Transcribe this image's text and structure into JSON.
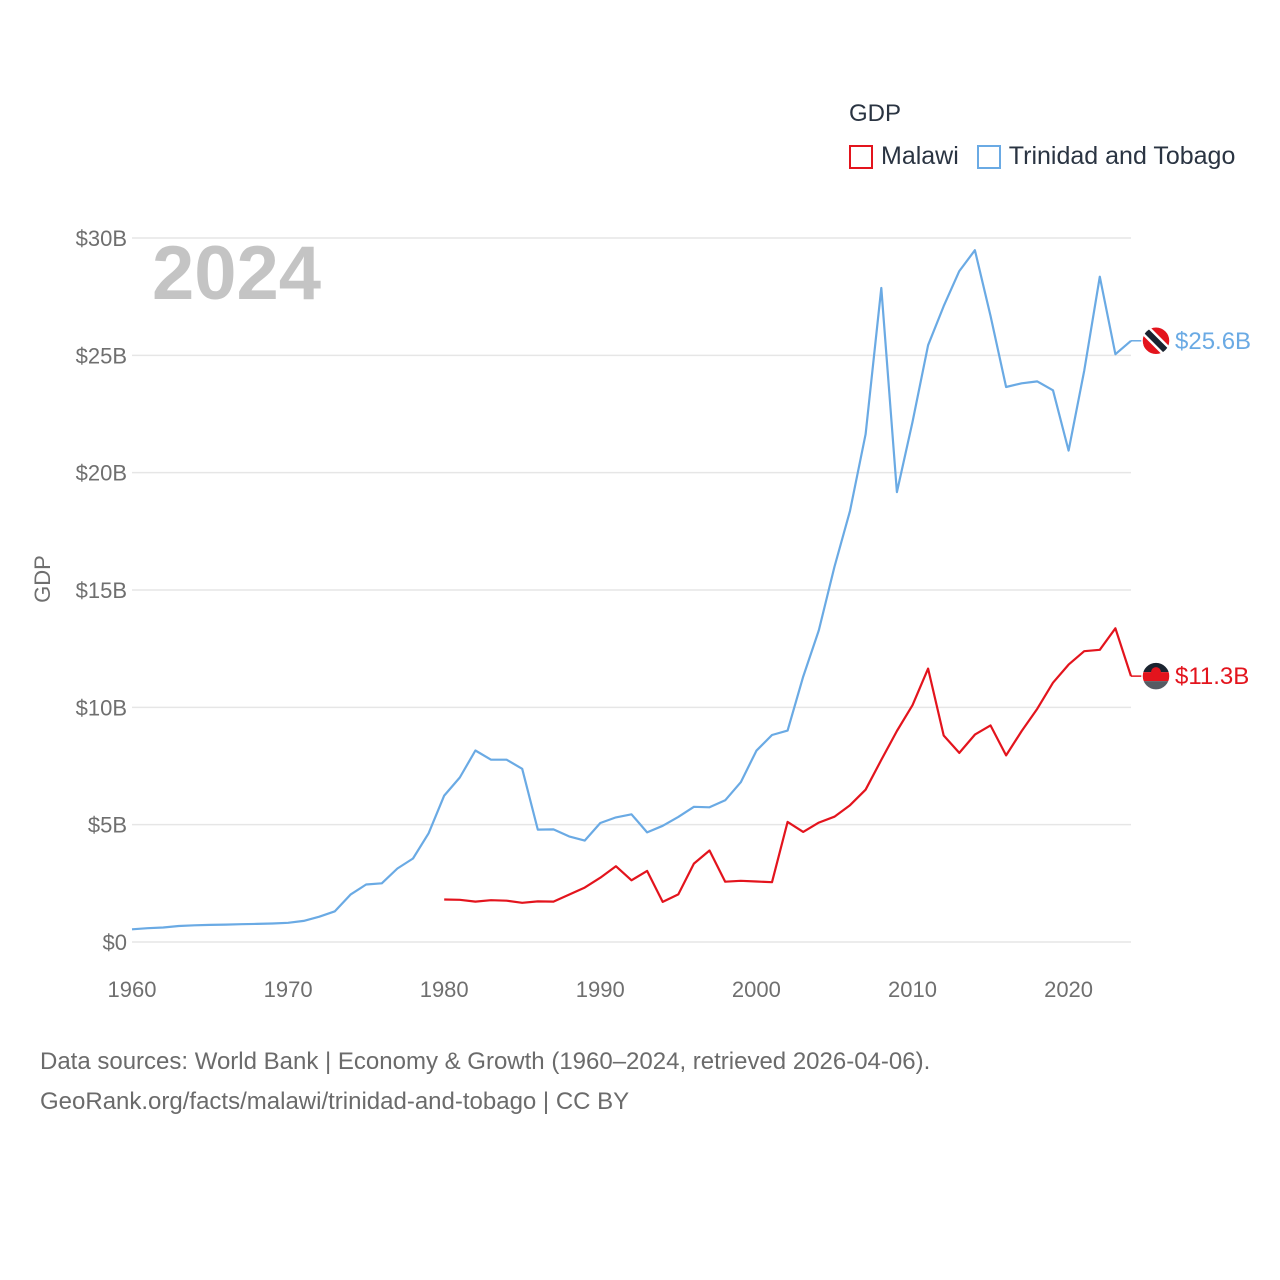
{
  "colors": {
    "malawi": "#e3141d",
    "trinidad": "#6aaae4",
    "grid": "#e6e6e6",
    "flag_dark": "#1b2430"
  },
  "legend": {
    "title": "GDP"
  },
  "year_label": "2024",
  "footer": {
    "line1": "Data sources: World Bank | Economy & Growth (1960–2024, retrieved 2026-04-06).",
    "line2": "GeoRank.org/facts/malawi/trinidad-and-tobago | CC BY"
  },
  "chart_data": {
    "type": "line",
    "title": "GDP",
    "xlabel": "",
    "ylabel": "GDP",
    "xlim": [
      1960,
      2024
    ],
    "ylim": [
      0,
      30
    ],
    "x_ticks": [
      1960,
      1970,
      1980,
      1990,
      2000,
      2010,
      2020
    ],
    "x_tick_labels": [
      "1960",
      "1970",
      "1980",
      "1990",
      "2000",
      "2010",
      "2020"
    ],
    "y_ticks": [
      0,
      5,
      10,
      15,
      20,
      25,
      30
    ],
    "y_tick_labels": [
      "$0",
      "$5B",
      "$10B",
      "$15B",
      "$20B",
      "$25B",
      "$30B"
    ],
    "grid": true,
    "legend_position": "top-right",
    "series": [
      {
        "name": "Malawi",
        "color_key": "malawi",
        "end_label": "$11.3B",
        "start_year": 1980,
        "values": [
          1.81,
          1.8,
          1.72,
          1.78,
          1.76,
          1.67,
          1.73,
          1.72,
          2.02,
          2.32,
          2.74,
          3.23,
          2.63,
          3.03,
          1.71,
          2.03,
          3.34,
          3.9,
          2.57,
          2.61,
          2.58,
          2.55,
          5.12,
          4.69,
          5.09,
          5.34,
          5.83,
          6.49,
          7.76,
          8.99,
          10.09,
          11.65,
          8.8,
          8.06,
          8.84,
          9.23,
          7.95,
          8.99,
          9.94,
          11.05,
          11.82,
          12.39,
          12.45,
          13.37,
          11.33
        ]
      },
      {
        "name": "Trinidad and Tobago",
        "color_key": "trinidad",
        "end_label": "$25.6B",
        "start_year": 1960,
        "values": [
          0.54,
          0.59,
          0.62,
          0.68,
          0.71,
          0.73,
          0.74,
          0.76,
          0.77,
          0.79,
          0.82,
          0.9,
          1.08,
          1.31,
          2.02,
          2.45,
          2.5,
          3.13,
          3.56,
          4.63,
          6.24,
          7.01,
          8.16,
          7.77,
          7.77,
          7.38,
          4.79,
          4.8,
          4.5,
          4.32,
          5.07,
          5.31,
          5.44,
          4.67,
          4.95,
          5.33,
          5.76,
          5.74,
          6.04,
          6.81,
          8.15,
          8.82,
          9.01,
          11.31,
          13.28,
          15.98,
          18.37,
          21.64,
          27.87,
          19.17,
          22.16,
          25.43,
          27.1,
          28.59,
          29.48,
          26.69,
          23.65,
          23.81,
          23.89,
          23.51,
          20.94,
          24.34,
          28.35,
          25.05,
          25.62
        ]
      }
    ]
  }
}
